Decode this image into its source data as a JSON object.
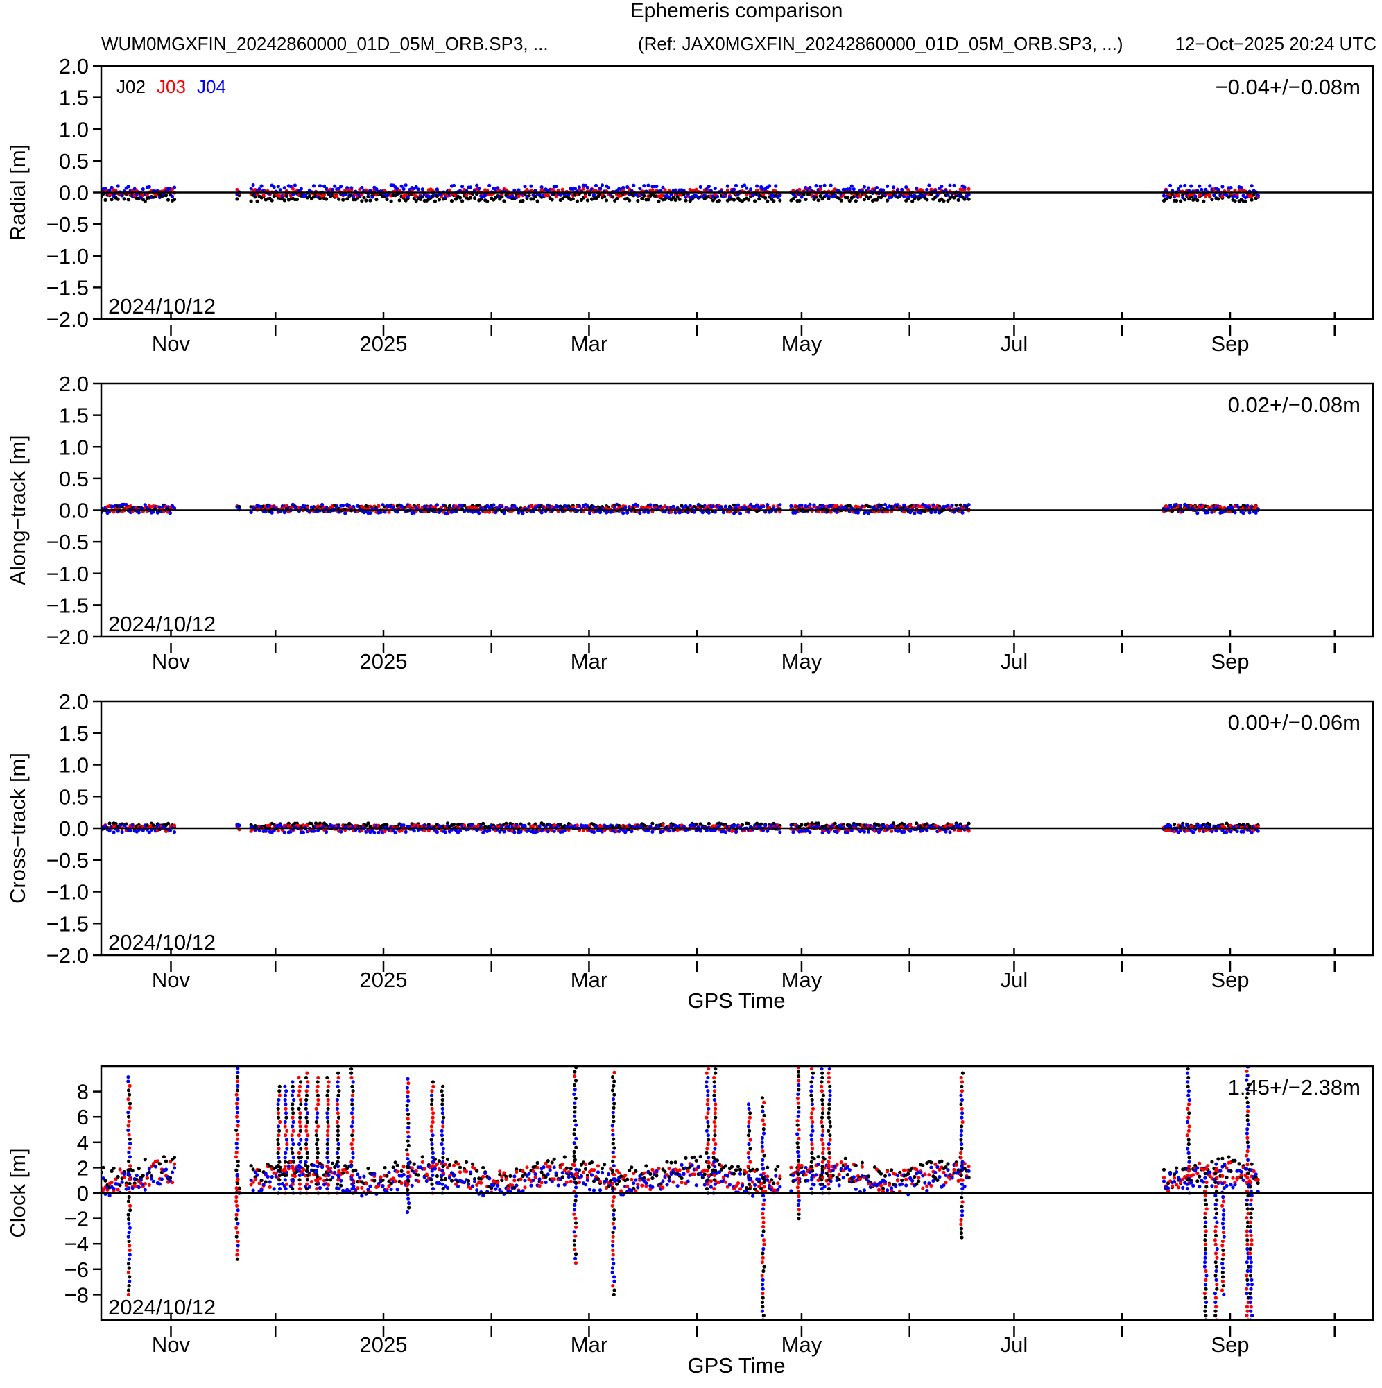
{
  "header": {
    "title": "Ephemeris comparison",
    "file_label": "WUM0MGXFIN_20242860000_01D_05M_ORB.SP3, ...",
    "ref_label": "(Ref: JAX0MGXFIN_20242860000_01D_05M_ORB.SP3, ...)",
    "timestamp": "12−Oct−2025 20:24 UTC"
  },
  "legend": [
    {
      "label": "J02",
      "color": "#000000"
    },
    {
      "label": "J03",
      "color": "#ff0000"
    },
    {
      "label": "J04",
      "color": "#0000ff"
    }
  ],
  "xlabel": "GPS Time",
  "x_tick_labels": [
    {
      "label": "Nov",
      "date": "2024-11-01"
    },
    {
      "label": "2025",
      "date": "2025-01-01"
    },
    {
      "label": "Mar",
      "date": "2025-03-01"
    },
    {
      "label": "May",
      "date": "2025-05-01"
    },
    {
      "label": "Jul",
      "date": "2025-07-01"
    },
    {
      "label": "Sep",
      "date": "2025-09-01"
    }
  ],
  "chart_data": [
    {
      "type": "scatter",
      "ylabel": "Radial [m]",
      "ylim": [
        -2.0,
        2.0
      ],
      "yticks": [
        "2.0",
        "1.5",
        "1.0",
        "0.5",
        "0.0",
        "−0.5",
        "−1.0",
        "−1.5",
        "−2.0"
      ],
      "xlim": [
        "2024-10-12",
        "2025-10-12"
      ],
      "stat": "−0.04+/−0.08m",
      "date_label": "2024/10/12",
      "series": [
        {
          "name": "J02",
          "color": "#000000",
          "mean": -0.08,
          "spread": 0.06
        },
        {
          "name": "J03",
          "color": "#ff0000",
          "mean": 0.0,
          "spread": 0.06
        },
        {
          "name": "J04",
          "color": "#0000ff",
          "mean": 0.02,
          "spread": 0.1
        }
      ]
    },
    {
      "type": "scatter",
      "ylabel": "Along−track [m]",
      "ylim": [
        -2.0,
        2.0
      ],
      "yticks": [
        "2.0",
        "1.5",
        "1.0",
        "0.5",
        "0.0",
        "−0.5",
        "−1.0",
        "−1.5",
        "−2.0"
      ],
      "xlim": [
        "2024-10-12",
        "2025-10-12"
      ],
      "stat": "0.02+/−0.08m",
      "date_label": "2024/10/12",
      "series": [
        {
          "name": "J02",
          "color": "#000000",
          "mean": 0.03,
          "spread": 0.05
        },
        {
          "name": "J03",
          "color": "#ff0000",
          "mean": 0.02,
          "spread": 0.05
        },
        {
          "name": "J04",
          "color": "#0000ff",
          "mean": 0.02,
          "spread": 0.07
        }
      ]
    },
    {
      "type": "scatter",
      "ylabel": "Cross−track [m]",
      "ylim": [
        -2.0,
        2.0
      ],
      "yticks": [
        "2.0",
        "1.5",
        "1.0",
        "0.5",
        "0.0",
        "−0.5",
        "−1.0",
        "−1.5",
        "−2.0"
      ],
      "xlim": [
        "2024-10-12",
        "2025-10-12"
      ],
      "stat": "0.00+/−0.06m",
      "date_label": "2024/10/12",
      "series": [
        {
          "name": "J02",
          "color": "#000000",
          "mean": 0.03,
          "spread": 0.05
        },
        {
          "name": "J03",
          "color": "#ff0000",
          "mean": 0.0,
          "spread": 0.05
        },
        {
          "name": "J04",
          "color": "#0000ff",
          "mean": -0.01,
          "spread": 0.06
        }
      ]
    },
    {
      "type": "scatter",
      "ylabel": "Clock [m]",
      "ylim": [
        -10,
        10
      ],
      "yticks": [
        "8",
        "6",
        "4",
        "2",
        "0",
        "−2",
        "−4",
        "−6",
        "−8"
      ],
      "xlim": [
        "2024-10-12",
        "2025-10-12"
      ],
      "stat": "1.45+/−2.38m",
      "date_label": "2024/10/12",
      "series": [
        {
          "name": "J02",
          "color": "#000000",
          "mean": 1.6,
          "spread": 0.9
        },
        {
          "name": "J03",
          "color": "#ff0000",
          "mean": 1.3,
          "spread": 0.9
        },
        {
          "name": "J04",
          "color": "#0000ff",
          "mean": 1.0,
          "spread": 0.9
        }
      ],
      "spikes": [
        {
          "date": "2024-10-20",
          "lo": -8.0,
          "hi": 9.3
        },
        {
          "date": "2024-11-20",
          "lo": -5.2,
          "hi": 10
        },
        {
          "date": "2024-12-02",
          "lo": 0,
          "hi": 8.5
        },
        {
          "date": "2024-12-04",
          "lo": 0,
          "hi": 8.7
        },
        {
          "date": "2024-12-06",
          "lo": 0,
          "hi": 9.0
        },
        {
          "date": "2024-12-08",
          "lo": 0,
          "hi": 9.3
        },
        {
          "date": "2024-12-10",
          "lo": 0,
          "hi": 9.6
        },
        {
          "date": "2024-12-13",
          "lo": 0,
          "hi": 9.2
        },
        {
          "date": "2024-12-16",
          "lo": 0,
          "hi": 9.4
        },
        {
          "date": "2024-12-19",
          "lo": 0,
          "hi": 9.6
        },
        {
          "date": "2024-12-23",
          "lo": 0,
          "hi": 10
        },
        {
          "date": "2025-01-08",
          "lo": -1.5,
          "hi": 9.3
        },
        {
          "date": "2025-01-15",
          "lo": 0,
          "hi": 8.8
        },
        {
          "date": "2025-01-18",
          "lo": 0,
          "hi": 8.5
        },
        {
          "date": "2025-02-25",
          "lo": -5.5,
          "hi": 10
        },
        {
          "date": "2025-03-08",
          "lo": -8.0,
          "hi": 9.5
        },
        {
          "date": "2025-04-04",
          "lo": 0,
          "hi": 10
        },
        {
          "date": "2025-04-06",
          "lo": 0,
          "hi": 10
        },
        {
          "date": "2025-04-16",
          "lo": 0,
          "hi": 7.0
        },
        {
          "date": "2025-04-20",
          "lo": -10,
          "hi": 7.5
        },
        {
          "date": "2025-04-30",
          "lo": -2.0,
          "hi": 10
        },
        {
          "date": "2025-05-04",
          "lo": 0,
          "hi": 10
        },
        {
          "date": "2025-05-07",
          "lo": 0,
          "hi": 10
        },
        {
          "date": "2025-05-09",
          "lo": 0,
          "hi": 10
        },
        {
          "date": "2025-06-16",
          "lo": -3.5,
          "hi": 9.5
        },
        {
          "date": "2025-08-20",
          "lo": 0,
          "hi": 10
        },
        {
          "date": "2025-08-25",
          "lo": -10,
          "hi": 2.0
        },
        {
          "date": "2025-08-28",
          "lo": -10,
          "hi": 2.0
        },
        {
          "date": "2025-08-30",
          "lo": -8.0,
          "hi": 1.0
        },
        {
          "date": "2025-09-06",
          "lo": -10,
          "hi": 10
        },
        {
          "date": "2025-09-07",
          "lo": -10,
          "hi": 1.0
        }
      ]
    }
  ]
}
